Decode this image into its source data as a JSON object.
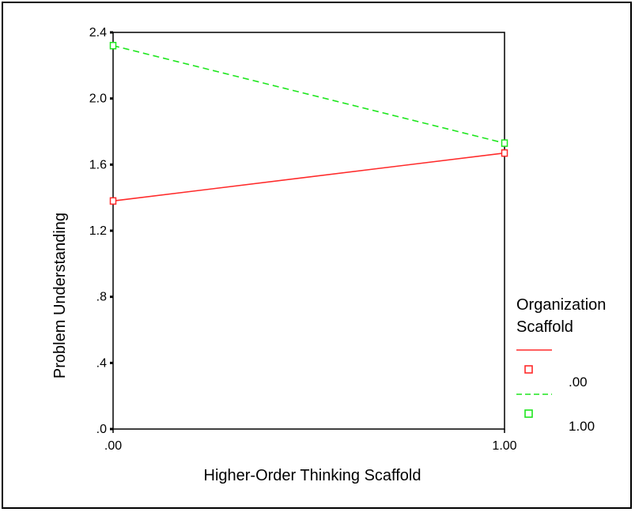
{
  "chart_data": {
    "type": "line",
    "title": "",
    "xlabel": "Higher-Order Thinking Scaffold",
    "ylabel": "Problem Understanding",
    "categories": [
      ".00",
      "1.00"
    ],
    "x": [
      0,
      1
    ],
    "ylim": [
      0,
      2.4
    ],
    "yticks": [
      ".0",
      ".4",
      ".8",
      "1.2",
      "1.6",
      "2.0",
      "2.4"
    ],
    "yticks_values": [
      0,
      0.4,
      0.8,
      1.2,
      1.6,
      2.0,
      2.4
    ],
    "grid": false,
    "legend_position": "right",
    "legend_title": "Organization Scaffold",
    "series": [
      {
        "name": ".00",
        "values": [
          1.38,
          1.67
        ],
        "color": "#ff2a2a",
        "dash": "solid",
        "marker": "square"
      },
      {
        "name": "1.00",
        "values": [
          2.32,
          1.73
        ],
        "color": "#1ee61e",
        "dash": "dashed",
        "marker": "square"
      }
    ]
  }
}
